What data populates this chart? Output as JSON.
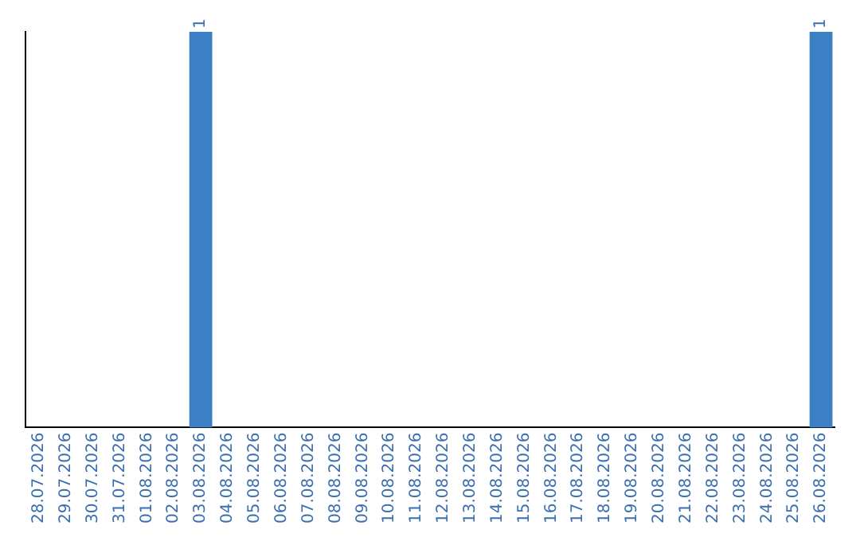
{
  "chart_data": {
    "type": "bar",
    "categories": [
      "28.07.2026",
      "29.07.2026",
      "30.07.2026",
      "31.07.2026",
      "01.08.2026",
      "02.08.2026",
      "03.08.2026",
      "04.08.2026",
      "05.08.2026",
      "06.08.2026",
      "07.08.2026",
      "08.08.2026",
      "09.08.2026",
      "10.08.2026",
      "11.08.2026",
      "12.08.2026",
      "13.08.2026",
      "14.08.2026",
      "15.08.2026",
      "16.08.2026",
      "17.08.2026",
      "18.08.2026",
      "19.08.2026",
      "20.08.2026",
      "21.08.2026",
      "22.08.2026",
      "23.08.2026",
      "24.08.2026",
      "25.08.2026",
      "26.08.2026"
    ],
    "values": [
      0,
      0,
      0,
      0,
      0,
      0,
      1,
      0,
      0,
      0,
      0,
      0,
      0,
      0,
      0,
      0,
      0,
      0,
      0,
      0,
      0,
      0,
      0,
      0,
      0,
      0,
      0,
      0,
      0,
      1
    ],
    "value_labels": [
      null,
      null,
      null,
      null,
      null,
      null,
      "1",
      null,
      null,
      null,
      null,
      null,
      null,
      null,
      null,
      null,
      null,
      null,
      null,
      null,
      null,
      null,
      null,
      null,
      null,
      null,
      null,
      null,
      null,
      "1"
    ],
    "color": "#3d7fc4",
    "grid": false,
    "legend": false,
    "tick_labels": "x"
  }
}
